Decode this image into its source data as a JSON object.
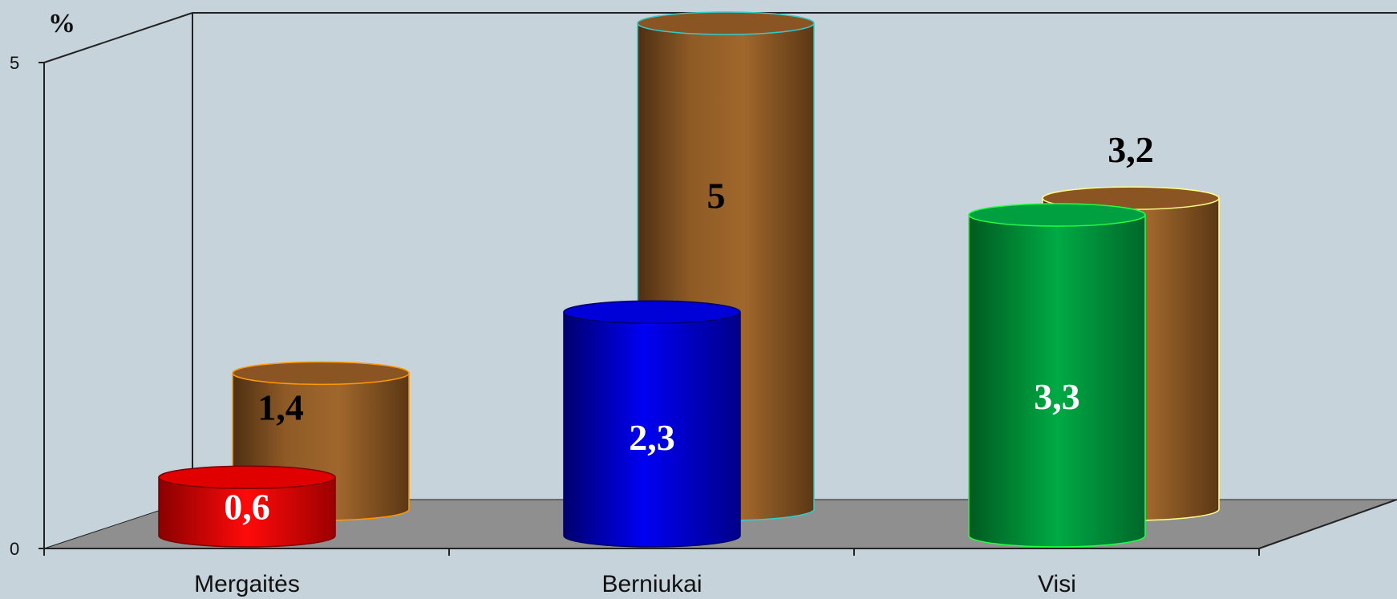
{
  "chart_data": {
    "type": "bar",
    "unit_label": "%",
    "ylim": [
      0,
      5
    ],
    "yticks": [
      "0",
      "5"
    ],
    "categories": [
      "Mergaitės",
      "Berniukai",
      "Visi"
    ],
    "series": [
      {
        "values": [
          0.6,
          2.3,
          3.3
        ],
        "labels": [
          "0,6",
          "2,3",
          "3,3"
        ],
        "colors": [
          "#f10000",
          "#0000ee",
          "#00a03a"
        ],
        "label_color": "#ffffff"
      },
      {
        "values": [
          1.4,
          5,
          3.2
        ],
        "labels": [
          "1,4",
          "5",
          "3,2"
        ],
        "colors": [
          "#9b6228",
          "#9b6228",
          "#9b6228"
        ],
        "label_color": "#000000"
      }
    ],
    "colors": {
      "background": "#c6d3da",
      "floor": "#8f8f8f"
    }
  }
}
